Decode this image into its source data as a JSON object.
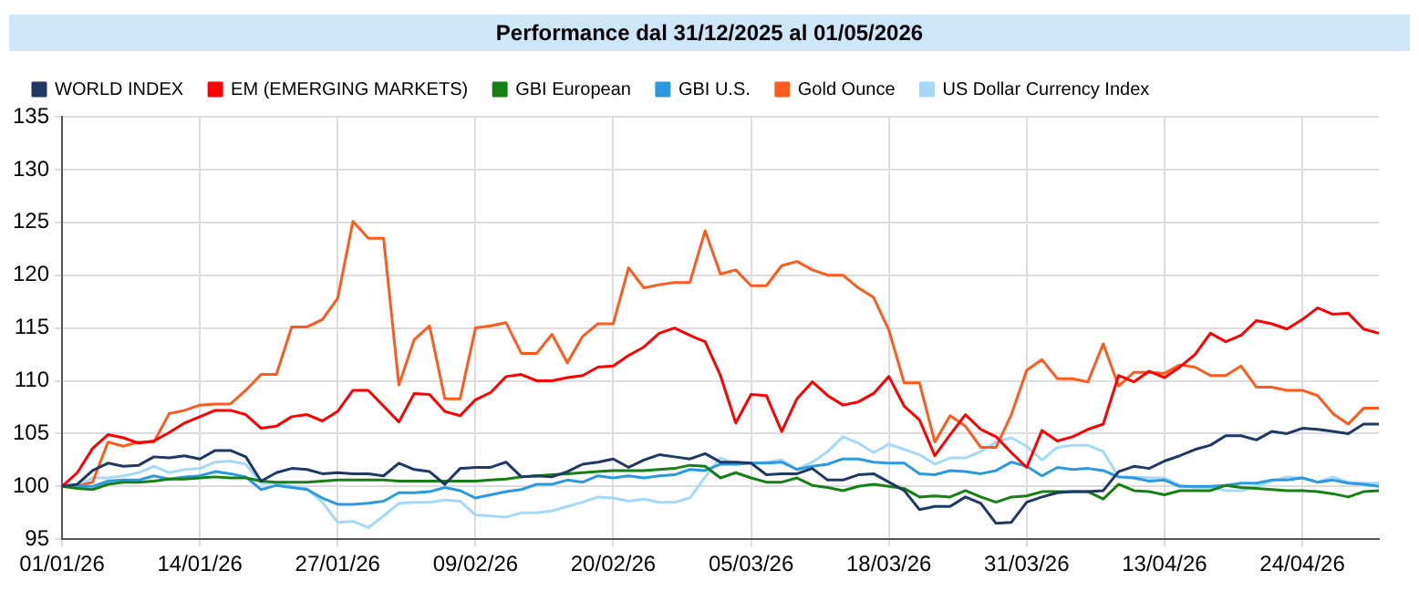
{
  "chart_data": {
    "type": "line",
    "title": "Performance dal 31/12/2025 al 01/05/2026",
    "categories": [
      "01/01/26",
      null,
      null,
      null,
      null,
      null,
      null,
      null,
      null,
      "14/01/26",
      null,
      null,
      null,
      null,
      null,
      null,
      null,
      null,
      "27/01/26",
      null,
      null,
      null,
      null,
      null,
      null,
      null,
      null,
      "09/02/26",
      null,
      null,
      null,
      null,
      null,
      null,
      null,
      null,
      "20/02/26",
      null,
      null,
      null,
      null,
      null,
      null,
      null,
      null,
      "05/03/26",
      null,
      null,
      null,
      null,
      null,
      null,
      null,
      null,
      "18/03/26",
      null,
      null,
      null,
      null,
      null,
      null,
      null,
      null,
      "31/03/26",
      null,
      null,
      null,
      null,
      null,
      null,
      null,
      null,
      "13/04/26",
      null,
      null,
      null,
      null,
      null,
      null,
      null,
      null,
      "24/04/26",
      null,
      null,
      null,
      null,
      null
    ],
    "ylim": [
      95,
      135
    ],
    "yticks": [
      95,
      100,
      105,
      110,
      115,
      120,
      125,
      130,
      135
    ],
    "grid": true,
    "legend": "top",
    "marker": "none",
    "line_style": "solid",
    "series": [
      {
        "name": "WORLD INDEX",
        "color": "#1f3864",
        "values": [
          100,
          100.2,
          101.5,
          102.2,
          101.9,
          102.0,
          102.8,
          102.7,
          102.9,
          102.6,
          103.4,
          103.4,
          102.8,
          100.5,
          101.3,
          101.7,
          101.6,
          101.2,
          101.3,
          101.2,
          101.2,
          101.0,
          102.2,
          101.6,
          101.4,
          100.2,
          101.7,
          101.8,
          101.8,
          102.3,
          100.9,
          101.0,
          100.9,
          101.4,
          102.1,
          102.3,
          102.6,
          101.8,
          102.5,
          103.0,
          102.8,
          102.6,
          103.1,
          102.3,
          102.3,
          102.2,
          101.1,
          101.2,
          101.2,
          101.7,
          100.6,
          100.6,
          101.1,
          101.2,
          100.4,
          99.6,
          97.8,
          98.1,
          98.1,
          99.0,
          98.4,
          96.5,
          96.6,
          98.5,
          99.0,
          99.4,
          99.5,
          99.5,
          99.6,
          101.4,
          101.9,
          101.7,
          102.4,
          102.9,
          103.5,
          103.9,
          104.8,
          104.8,
          104.4,
          105.2,
          105.0,
          105.5,
          105.4,
          105.2,
          105.0,
          105.9,
          105.9
        ]
      },
      {
        "name": "EM (EMERGING MARKETS)",
        "color": "#ff0000",
        "values": [
          100,
          101.3,
          103.6,
          104.9,
          104.6,
          104.1,
          104.3,
          105.1,
          106.0,
          106.6,
          107.2,
          107.2,
          106.8,
          105.5,
          105.7,
          106.6,
          106.8,
          106.2,
          107.1,
          109.1,
          109.1,
          107.6,
          106.1,
          108.8,
          108.7,
          107.1,
          106.7,
          108.2,
          108.9,
          110.4,
          110.6,
          110.0,
          110.0,
          110.3,
          110.5,
          111.3,
          111.4,
          112.4,
          113.2,
          114.5,
          115.0,
          114.3,
          113.7,
          110.5,
          106.0,
          108.7,
          108.6,
          105.2,
          108.3,
          109.9,
          108.6,
          107.7,
          108.0,
          108.8,
          110.4,
          107.6,
          106.3,
          102.9,
          104.9,
          106.8,
          105.4,
          104.7,
          103.2,
          101.8,
          105.3,
          104.3,
          104.7,
          105.4,
          105.9,
          110.5,
          109.9,
          110.9,
          110.3,
          111.3,
          112.5,
          114.5,
          113.7,
          114.3,
          115.7,
          115.4,
          114.9,
          115.8,
          116.9,
          116.3,
          116.4,
          114.9,
          114.5
        ]
      },
      {
        "name": "GBI European",
        "color": "#168016",
        "values": [
          100,
          99.8,
          99.7,
          100.2,
          100.4,
          100.4,
          100.5,
          100.7,
          100.7,
          100.8,
          100.9,
          100.8,
          100.8,
          100.5,
          100.4,
          100.4,
          100.4,
          100.5,
          100.6,
          100.6,
          100.6,
          100.6,
          100.5,
          100.5,
          100.5,
          100.5,
          100.5,
          100.5,
          100.6,
          100.7,
          100.9,
          101.0,
          101.1,
          101.2,
          101.3,
          101.4,
          101.5,
          101.5,
          101.5,
          101.6,
          101.7,
          102.0,
          101.9,
          100.8,
          101.3,
          100.8,
          100.4,
          100.4,
          100.8,
          100.1,
          99.9,
          99.6,
          100.0,
          100.2,
          100.0,
          99.8,
          99.0,
          99.1,
          99.0,
          99.6,
          99.0,
          98.5,
          99.0,
          99.1,
          99.5,
          99.5,
          99.5,
          99.5,
          98.8,
          100.2,
          99.6,
          99.5,
          99.2,
          99.6,
          99.6,
          99.6,
          100.1,
          99.9,
          99.8,
          99.7,
          99.6,
          99.6,
          99.5,
          99.3,
          99.0,
          99.5,
          99.6
        ]
      },
      {
        "name": "GBI U.S.",
        "color": "#2a9ae0",
        "values": [
          100,
          100,
          100.0,
          100.5,
          100.6,
          100.6,
          101.0,
          100.7,
          100.9,
          101.0,
          101.4,
          101.2,
          100.9,
          99.7,
          100.1,
          99.9,
          99.7,
          98.9,
          98.3,
          98.3,
          98.4,
          98.6,
          99.4,
          99.4,
          99.5,
          99.9,
          99.6,
          98.9,
          99.2,
          99.5,
          99.7,
          100.2,
          100.2,
          100.6,
          100.4,
          101.0,
          100.8,
          101.0,
          100.8,
          101.0,
          101.1,
          101.6,
          101.5,
          102.1,
          102.1,
          102.2,
          102.2,
          102.3,
          101.6,
          101.9,
          102.1,
          102.6,
          102.6,
          102.3,
          102.2,
          102.2,
          101.2,
          101.1,
          101.5,
          101.4,
          101.2,
          101.5,
          102.3,
          101.9,
          101.0,
          101.8,
          101.6,
          101.7,
          101.5,
          100.9,
          100.8,
          100.5,
          100.6,
          100.0,
          100.0,
          100.0,
          100.1,
          100.3,
          100.3,
          100.6,
          100.6,
          100.8,
          100.4,
          100.6,
          100.3,
          100.2,
          100.0
        ]
      },
      {
        "name": "Gold Ounce",
        "color": "#ff5a1e",
        "values": [
          100,
          100,
          100.4,
          104.2,
          103.8,
          104.2,
          104.2,
          106.9,
          107.2,
          107.7,
          107.8,
          107.8,
          109.1,
          110.6,
          110.6,
          115.1,
          115.1,
          115.8,
          117.8,
          125.1,
          123.5,
          123.5,
          109.6,
          113.9,
          115.2,
          108.3,
          108.3,
          115.0,
          115.2,
          115.5,
          112.6,
          112.6,
          114.4,
          111.7,
          114.2,
          115.4,
          115.4,
          120.7,
          118.8,
          119.1,
          119.3,
          119.3,
          124.2,
          120.1,
          120.5,
          119.0,
          119.0,
          120.9,
          121.3,
          120.5,
          120.0,
          120.0,
          118.8,
          117.9,
          114.8,
          109.8,
          109.8,
          104.2,
          106.7,
          105.7,
          103.7,
          103.7,
          106.8,
          111.0,
          112.0,
          110.2,
          110.2,
          109.9,
          113.5,
          109.5,
          110.8,
          110.8,
          110.7,
          111.5,
          111.3,
          110.5,
          110.5,
          111.4,
          109.4,
          109.4,
          109.1,
          109.1,
          108.6,
          106.9,
          105.9,
          107.4,
          107.4
        ]
      },
      {
        "name": "US Dollar Currency Index",
        "color": "#a6d8f7",
        "values": [
          100,
          100,
          100.8,
          100.8,
          101.0,
          101.3,
          101.9,
          101.3,
          101.6,
          101.7,
          102.3,
          102.4,
          102.1,
          100.3,
          100.3,
          100.0,
          99.8,
          98.5,
          96.6,
          96.7,
          96.1,
          97.2,
          98.4,
          98.5,
          98.5,
          98.7,
          98.6,
          97.3,
          97.2,
          97.1,
          97.5,
          97.5,
          97.7,
          98.1,
          98.5,
          99.0,
          98.9,
          98.6,
          98.8,
          98.5,
          98.5,
          98.9,
          100.9,
          102.7,
          102.1,
          102.2,
          102.3,
          102.5,
          101.6,
          102.3,
          103.3,
          104.7,
          104.1,
          103.2,
          104.0,
          103.5,
          103.0,
          102.1,
          102.7,
          102.7,
          103.3,
          104.2,
          104.6,
          103.8,
          102.5,
          103.7,
          103.9,
          103.9,
          103.3,
          100.9,
          100.9,
          100.8,
          100.8,
          100.1,
          99.9,
          99.9,
          99.6,
          99.6,
          100.0,
          100.5,
          100.9,
          100.8,
          100.4,
          100.9,
          100.4,
          100.3,
          100.3
        ]
      }
    ]
  }
}
